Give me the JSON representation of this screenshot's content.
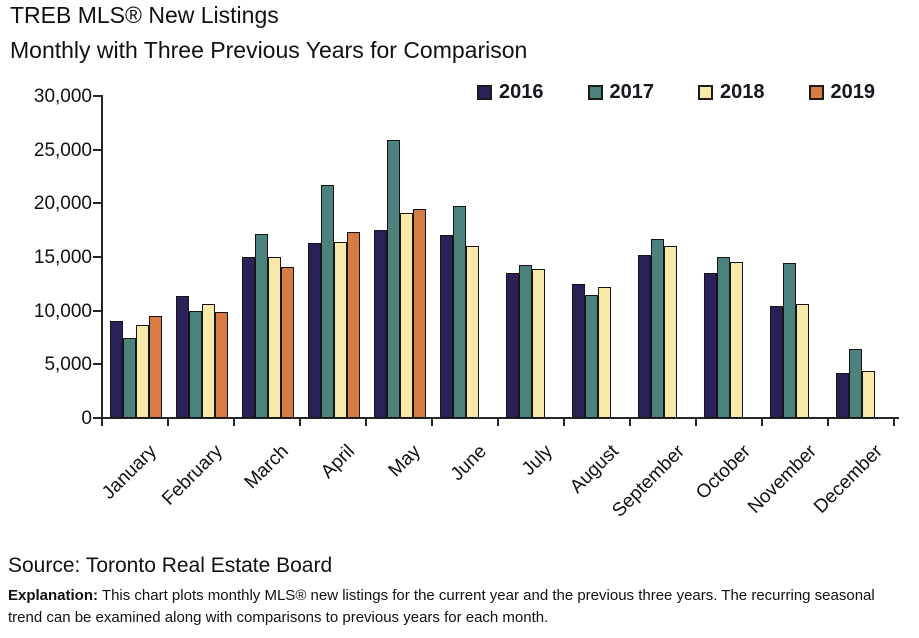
{
  "header": {
    "title": "TREB MLS® New Listings",
    "subtitle": "Monthly with Three Previous Years for Comparison"
  },
  "footer": {
    "source": "Source: Toronto Real Estate Board",
    "explanation_label": "Explanation:",
    "explanation_text": " This chart plots monthly MLS® new listings for the current year and the previous three years. The recurring seasonal trend can be examined along with comparisons to previous years for each month."
  },
  "chart_data": {
    "type": "bar",
    "title": "TREB MLS® New Listings",
    "subtitle": "Monthly with Three Previous Years for Comparison",
    "categories": [
      "January",
      "February",
      "March",
      "April",
      "May",
      "June",
      "July",
      "August",
      "September",
      "October",
      "November",
      "December"
    ],
    "series": [
      {
        "name": "2016",
        "color": "#2A2159",
        "values": [
          8906,
          11274,
          14887,
          16190,
          17412,
          16922,
          13432,
          12346,
          15082,
          13377,
          10346,
          4078
        ]
      },
      {
        "name": "2017",
        "color": "#4B827E",
        "values": [
          7338,
          9834,
          17052,
          21630,
          25837,
          19614,
          14128,
          11361,
          16539,
          14903,
          14349,
          6289
        ]
      },
      {
        "name": "2018",
        "color": "#F6E9A9",
        "values": [
          8525,
          10520,
          14866,
          16273,
          19022,
          15922,
          13748,
          12134,
          15920,
          14431,
          10534,
          4308
        ]
      },
      {
        "name": "2019",
        "color": "#D67C42",
        "values": [
          9456,
          9828,
          13996,
          17213,
          19386,
          null,
          null,
          null,
          null,
          null,
          null,
          null
        ]
      }
    ],
    "ylabel": "",
    "xlabel": "",
    "ylim": [
      0,
      30000
    ],
    "ytick_step": 5000,
    "ytick_labels": [
      "0",
      "5,000",
      "10,000",
      "15,000",
      "20,000",
      "25,000",
      "30,000"
    ],
    "legend_position": "top-right",
    "grid": false,
    "axis_color": "#262626",
    "bar_border_color": "#141414"
  }
}
